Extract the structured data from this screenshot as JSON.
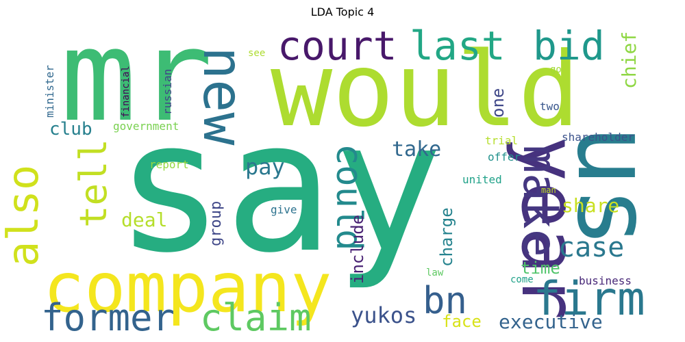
{
  "chart_data": {
    "type": "wordcloud",
    "title": "LDA Topic 4",
    "colormap": "viridis",
    "words": [
      {
        "text": "say",
        "rank": 1
      },
      {
        "text": "mr",
        "rank": 2
      },
      {
        "text": "would",
        "rank": 3
      },
      {
        "text": "us",
        "rank": 4
      },
      {
        "text": "year",
        "rank": 5
      },
      {
        "text": "company",
        "rank": 6
      },
      {
        "text": "new",
        "rank": 7
      },
      {
        "text": "court",
        "rank": 8
      },
      {
        "text": "also",
        "rank": 9
      },
      {
        "text": "make",
        "rank": 10
      },
      {
        "text": "firm",
        "rank": 11
      },
      {
        "text": "last",
        "rank": 12
      },
      {
        "text": "bid",
        "rank": 13
      },
      {
        "text": "claim",
        "rank": 14
      },
      {
        "text": "former",
        "rank": 15
      },
      {
        "text": "bn",
        "rank": 16
      },
      {
        "text": "tell",
        "rank": 17
      },
      {
        "text": "could",
        "rank": 18
      },
      {
        "text": "case",
        "rank": 19
      },
      {
        "text": "yukos",
        "rank": 20
      },
      {
        "text": "executive",
        "rank": 21
      },
      {
        "text": "pay",
        "rank": 22
      },
      {
        "text": "chief",
        "rank": 23
      },
      {
        "text": "take",
        "rank": 24
      },
      {
        "text": "deal",
        "rank": 25
      },
      {
        "text": "share",
        "rank": 26
      },
      {
        "text": "club",
        "rank": 27
      },
      {
        "text": "include",
        "rank": 28
      },
      {
        "text": "charge",
        "rank": 29
      },
      {
        "text": "group",
        "rank": 30
      },
      {
        "text": "time",
        "rank": 31
      },
      {
        "text": "face",
        "rank": 32
      },
      {
        "text": "one",
        "rank": 33
      },
      {
        "text": "government",
        "rank": 34
      },
      {
        "text": "russian",
        "rank": 35
      },
      {
        "text": "financial",
        "rank": 36
      },
      {
        "text": "minister",
        "rank": 37
      },
      {
        "text": "two",
        "rank": 38
      },
      {
        "text": "shareholder",
        "rank": 39
      },
      {
        "text": "business",
        "rank": 40
      },
      {
        "text": "report",
        "rank": 41
      },
      {
        "text": "trial",
        "rank": 42
      },
      {
        "text": "offer",
        "rank": 43
      },
      {
        "text": "united",
        "rank": 44
      },
      {
        "text": "give",
        "rank": 45
      },
      {
        "text": "see",
        "rank": 46
      },
      {
        "text": "go",
        "rank": 47
      },
      {
        "text": "law",
        "rank": 48
      },
      {
        "text": "come",
        "rank": 49
      },
      {
        "text": "man",
        "rank": 50
      }
    ]
  }
}
